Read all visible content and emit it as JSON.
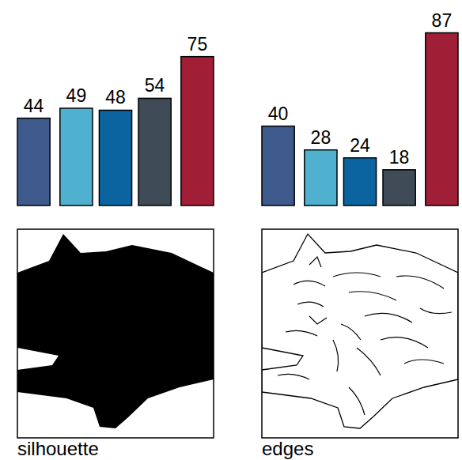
{
  "chart_data": [
    {
      "type": "bar",
      "title": "silhouette",
      "categories": [
        null,
        null,
        null,
        null,
        null
      ],
      "values": [
        44,
        49,
        48,
        54,
        75
      ],
      "colors": [
        "#3e5a8c",
        "#4fb0cf",
        "#0b64a0",
        "#3f4b57",
        "#a11f36"
      ],
      "ylim": [
        0,
        90
      ],
      "data_labels": true,
      "tick_labels": false,
      "grid": false
    },
    {
      "type": "bar",
      "title": "edges",
      "categories": [
        null,
        null,
        null,
        null,
        null
      ],
      "values": [
        40,
        28,
        24,
        18,
        87
      ],
      "colors": [
        "#3e5a8c",
        "#4fb0cf",
        "#0b64a0",
        "#3f4b57",
        "#a11f36"
      ],
      "ylim": [
        0,
        90
      ],
      "data_labels": true,
      "tick_labels": false,
      "grid": false
    }
  ]
}
